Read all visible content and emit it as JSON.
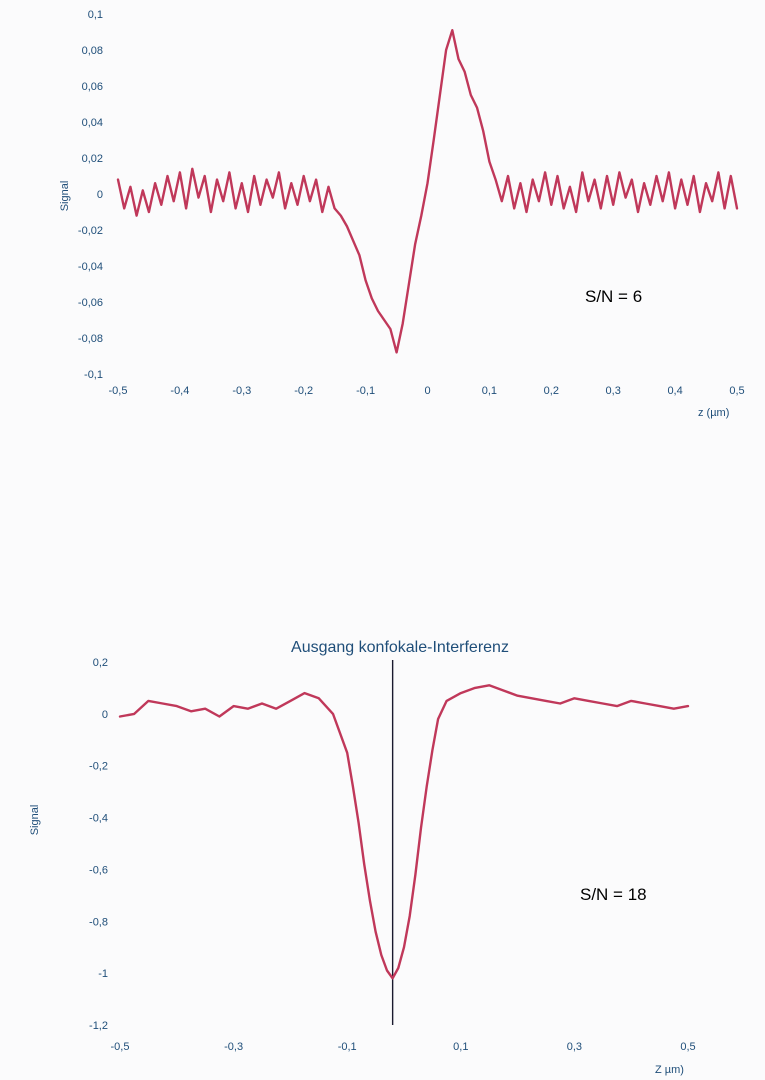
{
  "colors": {
    "series": "#c0385a",
    "text": "#1f4e79",
    "marker_line": "#1a1a2e"
  },
  "chart_data": [
    {
      "type": "line",
      "title": "",
      "annotation": "S/N = 6",
      "xlabel": "z  (µm)",
      "ylabel": "Signal",
      "xlim": [
        -0.5,
        0.5
      ],
      "ylim": [
        -0.1,
        0.1
      ],
      "x_ticks": [
        "-0,5",
        "-0,4",
        "-0,3",
        "-0,2",
        "-0,1",
        "0",
        "0,1",
        "0,2",
        "0,3",
        "0,4",
        "0,5"
      ],
      "y_ticks": [
        "0,1",
        "0,08",
        "0,06",
        "0,04",
        "0,02",
        "0",
        "-0,02",
        "-0,04",
        "-0,06",
        "-0,08",
        "-0,1"
      ],
      "grid": false,
      "series": [
        {
          "x": [
            -0.5,
            -0.49,
            -0.48,
            -0.47,
            -0.46,
            -0.45,
            -0.44,
            -0.43,
            -0.42,
            -0.41,
            -0.4,
            -0.39,
            -0.38,
            -0.37,
            -0.36,
            -0.35,
            -0.34,
            -0.33,
            -0.32,
            -0.31,
            -0.3,
            -0.29,
            -0.28,
            -0.27,
            -0.26,
            -0.25,
            -0.24,
            -0.23,
            -0.22,
            -0.21,
            -0.2,
            -0.19,
            -0.18,
            -0.17,
            -0.16,
            -0.15,
            -0.14,
            -0.13,
            -0.12,
            -0.11,
            -0.1,
            -0.09,
            -0.08,
            -0.07,
            -0.06,
            -0.05,
            -0.04,
            -0.03,
            -0.02,
            -0.01,
            0,
            0.01,
            0.02,
            0.03,
            0.04,
            0.05,
            0.06,
            0.07,
            0.08,
            0.09,
            0.1,
            0.11,
            0.12,
            0.13,
            0.14,
            0.15,
            0.16,
            0.17,
            0.18,
            0.19,
            0.2,
            0.21,
            0.22,
            0.23,
            0.24,
            0.25,
            0.26,
            0.27,
            0.28,
            0.29,
            0.3,
            0.31,
            0.32,
            0.33,
            0.34,
            0.35,
            0.36,
            0.37,
            0.38,
            0.39,
            0.4,
            0.41,
            0.42,
            0.43,
            0.44,
            0.45,
            0.46,
            0.47,
            0.48,
            0.49,
            0.5
          ],
          "y": [
            0.008,
            -0.008,
            0.004,
            -0.012,
            0.002,
            -0.01,
            0.006,
            -0.006,
            0.01,
            -0.004,
            0.012,
            -0.008,
            0.014,
            -0.002,
            0.01,
            -0.01,
            0.008,
            -0.004,
            0.012,
            -0.008,
            0.006,
            -0.01,
            0.01,
            -0.006,
            0.008,
            -0.002,
            0.012,
            -0.008,
            0.006,
            -0.006,
            0.01,
            -0.004,
            0.008,
            -0.01,
            0.004,
            -0.008,
            -0.012,
            -0.018,
            -0.026,
            -0.034,
            -0.048,
            -0.058,
            -0.065,
            -0.07,
            -0.075,
            -0.088,
            -0.072,
            -0.05,
            -0.028,
            -0.012,
            0.006,
            0.03,
            0.055,
            0.08,
            0.091,
            0.075,
            0.068,
            0.055,
            0.048,
            0.035,
            0.018,
            0.008,
            -0.004,
            0.01,
            -0.008,
            0.006,
            -0.01,
            0.008,
            -0.004,
            0.012,
            -0.006,
            0.01,
            -0.008,
            0.004,
            -0.01,
            0.012,
            -0.004,
            0.008,
            -0.008,
            0.01,
            -0.006,
            0.012,
            -0.002,
            0.008,
            -0.01,
            0.006,
            -0.006,
            0.01,
            -0.004,
            0.012,
            -0.008,
            0.008,
            -0.006,
            0.01,
            -0.01,
            0.006,
            -0.004,
            0.012,
            -0.008,
            0.01,
            -0.008
          ]
        }
      ]
    },
    {
      "type": "line",
      "title": "Ausgang konfokale-Interferenz",
      "annotation": "S/N = 18",
      "xlabel": "Z  µm)",
      "ylabel": "Signal",
      "xlim": [
        -0.5,
        0.5
      ],
      "ylim": [
        -1.2,
        0.2
      ],
      "x_ticks": [
        "-0,5",
        "-0,3",
        "-0,1",
        "0,1",
        "0,3",
        "0,5"
      ],
      "y_ticks": [
        "0,2",
        "0",
        "-0,2",
        "-0,4",
        "-0,6",
        "-0,8",
        "-1",
        "-1,2"
      ],
      "grid": false,
      "marker_x": -0.02,
      "series": [
        {
          "x": [
            -0.5,
            -0.475,
            -0.45,
            -0.425,
            -0.4,
            -0.375,
            -0.35,
            -0.325,
            -0.3,
            -0.275,
            -0.25,
            -0.225,
            -0.2,
            -0.175,
            -0.15,
            -0.125,
            -0.1,
            -0.09,
            -0.08,
            -0.07,
            -0.06,
            -0.05,
            -0.04,
            -0.03,
            -0.02,
            -0.01,
            0,
            0.01,
            0.02,
            0.03,
            0.04,
            0.05,
            0.06,
            0.075,
            0.1,
            0.125,
            0.15,
            0.175,
            0.2,
            0.225,
            0.25,
            0.275,
            0.3,
            0.325,
            0.35,
            0.375,
            0.4,
            0.425,
            0.45,
            0.475,
            0.5
          ],
          "y": [
            -0.01,
            0.0,
            0.05,
            0.04,
            0.03,
            0.01,
            0.02,
            -0.01,
            0.03,
            0.02,
            0.04,
            0.02,
            0.05,
            0.08,
            0.06,
            0.0,
            -0.15,
            -0.28,
            -0.42,
            -0.58,
            -0.72,
            -0.84,
            -0.93,
            -0.99,
            -1.02,
            -0.98,
            -0.9,
            -0.78,
            -0.62,
            -0.44,
            -0.28,
            -0.14,
            -0.02,
            0.05,
            0.08,
            0.1,
            0.11,
            0.09,
            0.07,
            0.06,
            0.05,
            0.04,
            0.06,
            0.05,
            0.04,
            0.03,
            0.05,
            0.04,
            0.03,
            0.02,
            0.03
          ]
        }
      ]
    }
  ]
}
